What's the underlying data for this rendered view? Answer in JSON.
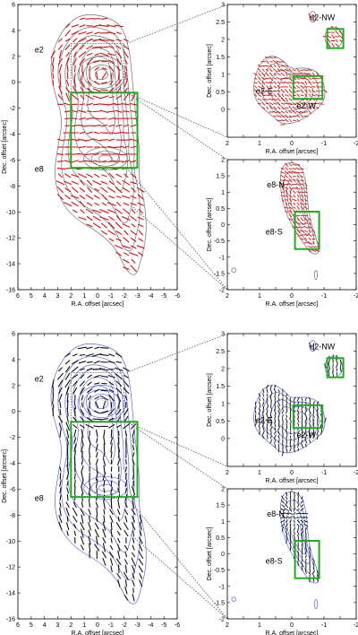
{
  "chart_data": [
    {
      "id": "p1",
      "type": "scatter",
      "subtype": "polarization-vector-map",
      "vector_color": "#d01010",
      "contour_color": "#6e6e6e",
      "xlabel": "R.A. offset [arcsec]",
      "ylabel": "Dec. offset [arcsec]",
      "xlim": [
        6,
        -6
      ],
      "ylim": [
        -16,
        6
      ],
      "xticks": [
        6,
        5,
        4,
        3,
        2,
        1,
        0,
        -1,
        -2,
        -3,
        -4,
        -5,
        -6
      ],
      "yticks": [
        6,
        4,
        2,
        0,
        -2,
        -4,
        -6,
        -8,
        -10,
        -12,
        -14,
        -16
      ],
      "labels": [
        {
          "text": "e2",
          "x": 4.4,
          "y": 2.3
        },
        {
          "text": "e8",
          "x": 4.4,
          "y": -6.9
        }
      ],
      "zoom_boxes": [
        {
          "x0": 2,
          "x1": -3,
          "y0": -0.8,
          "y1": -6.6
        }
      ]
    },
    {
      "id": "p2",
      "type": "scatter",
      "subtype": "polarization-vector-map",
      "vector_color": "#d01010",
      "contour_color": "#6e6e6e",
      "xlabel": "R.A. offset [arcsec]",
      "ylabel": "Dec. offset [arcsec]",
      "xlim": [
        2,
        -2
      ],
      "ylim": [
        -0.8,
        3
      ],
      "xticks": [
        2,
        1.5,
        1,
        0.5,
        0,
        -0.5,
        -1,
        -1.5,
        -2
      ],
      "xticklabels": [
        "2",
        "",
        "1",
        "",
        "0",
        "",
        "-1",
        "",
        "-2"
      ],
      "yticks": [
        0,
        0.5,
        1,
        1.5,
        2,
        2.5,
        3
      ],
      "yticklabels": [
        "0",
        "0.5",
        "1",
        "1.5",
        "2",
        "2.5",
        "3"
      ],
      "labels": [
        {
          "text": "e2-NW",
          "x": -0.95,
          "y": 2.55
        },
        {
          "text": "e2-E",
          "x": 0.85,
          "y": 0.45
        },
        {
          "text": "e2-W",
          "x": -0.45,
          "y": 0.02
        }
      ],
      "zoom_boxes": [
        {
          "x0": -1.1,
          "x1": -1.6,
          "y0": 1.75,
          "y1": 2.3
        },
        {
          "x0": -0.05,
          "x1": -0.95,
          "y0": 0.3,
          "y1": 0.95
        }
      ]
    },
    {
      "id": "p3",
      "type": "scatter",
      "subtype": "polarization-vector-map",
      "vector_color": "#d01010",
      "contour_color": "#6e6e6e",
      "xlabel": "R.A. offset [arcsec]",
      "ylabel": "Dec. offset [arcsec]",
      "xlim": [
        2,
        -2
      ],
      "ylim": [
        -2,
        2
      ],
      "xticks": [
        2,
        1.5,
        1,
        0.5,
        0,
        -0.5,
        -1,
        -1.5,
        -2
      ],
      "xticklabels": [
        "2",
        "",
        "1",
        "",
        "0",
        "",
        "-1",
        "",
        "-2"
      ],
      "yticks": [
        -2,
        -1.5,
        -1,
        -0.5,
        0,
        0.5,
        1,
        1.5,
        2
      ],
      "yticklabels": [
        "-2",
        "-1.5",
        "-1",
        "-0.5",
        "0",
        "0.5",
        "1",
        "1.5",
        "2"
      ],
      "labels": [
        {
          "text": "e8-N",
          "x": 0.5,
          "y": 1.15
        },
        {
          "text": "e8-S",
          "x": 0.55,
          "y": -0.3
        }
      ],
      "zoom_boxes": [
        {
          "x0": -0.1,
          "x1": -0.85,
          "y0": -0.75,
          "y1": 0.4
        }
      ]
    },
    {
      "id": "p4",
      "type": "scatter",
      "subtype": "polarization-vector-map",
      "vector_color": "#111111",
      "contour_color": "#5a6ad8",
      "xlabel": "R.A. offset [arcsec]",
      "ylabel": "Dec. offset [arcsec]",
      "xlim": [
        6,
        -6
      ],
      "ylim": [
        -16,
        6
      ],
      "xticks": [
        6,
        5,
        4,
        3,
        2,
        1,
        0,
        -1,
        -2,
        -3,
        -4,
        -5,
        -6
      ],
      "yticks": [
        6,
        4,
        2,
        0,
        -2,
        -4,
        -6,
        -8,
        -10,
        -12,
        -14,
        -16
      ],
      "labels": [
        {
          "text": "e2",
          "x": 4.4,
          "y": 2.3
        },
        {
          "text": "e8",
          "x": 4.4,
          "y": -6.9
        }
      ],
      "zoom_boxes": [
        {
          "x0": 2,
          "x1": -3,
          "y0": -0.8,
          "y1": -6.6
        }
      ]
    },
    {
      "id": "p5",
      "type": "scatter",
      "subtype": "polarization-vector-map",
      "vector_color": "#111111",
      "contour_color": "#5a6ad8",
      "xlabel": "R.A. offset [arcsec]",
      "ylabel": "Dec. offset [arcsec]",
      "xlim": [
        2,
        -2
      ],
      "ylim": [
        -0.8,
        3
      ],
      "xticks": [
        2,
        1.5,
        1,
        0.5,
        0,
        -0.5,
        -1,
        -1.5,
        -2
      ],
      "xticklabels": [
        "2",
        "",
        "1",
        "",
        "0",
        "",
        "-1",
        "",
        "-2"
      ],
      "yticks": [
        0,
        0.5,
        1,
        1.5,
        2,
        2.5,
        3
      ],
      "yticklabels": [
        "0",
        "0.5",
        "1",
        "1.5",
        "2",
        "2.5",
        "3"
      ],
      "labels": [
        {
          "text": "e2-NW",
          "x": -0.95,
          "y": 2.55
        },
        {
          "text": "e2-E",
          "x": 0.85,
          "y": 0.45
        },
        {
          "text": "e2-W",
          "x": -0.45,
          "y": 0.02
        }
      ],
      "zoom_boxes": [
        {
          "x0": -1.1,
          "x1": -1.6,
          "y0": 1.75,
          "y1": 2.3
        },
        {
          "x0": -0.05,
          "x1": -0.95,
          "y0": 0.3,
          "y1": 0.95
        }
      ]
    },
    {
      "id": "p6",
      "type": "scatter",
      "subtype": "polarization-vector-map",
      "vector_color": "#111111",
      "contour_color": "#5a6ad8",
      "xlabel": "R.A. offset [arcsec]",
      "ylabel": "Dec. offset [arcsec]",
      "xlim": [
        2,
        -2
      ],
      "ylim": [
        -2,
        2
      ],
      "xticks": [
        2,
        1.5,
        1,
        0.5,
        0,
        -0.5,
        -1,
        -1.5,
        -2
      ],
      "xticklabels": [
        "2",
        "",
        "1",
        "",
        "0",
        "",
        "-1",
        "",
        "-2"
      ],
      "yticks": [
        -2,
        -1.5,
        -1,
        -0.5,
        0,
        0.5,
        1,
        1.5,
        2
      ],
      "yticklabels": [
        "-2",
        "-1.5",
        "-1",
        "-0.5",
        "0",
        "0.5",
        "1",
        "1.5",
        "2"
      ],
      "labels": [
        {
          "text": "e8-N",
          "x": 0.5,
          "y": 1.15
        },
        {
          "text": "e8-S",
          "x": 0.55,
          "y": -0.3
        }
      ],
      "zoom_boxes": [
        {
          "x0": -0.1,
          "x1": -0.85,
          "y0": -0.75,
          "y1": 0.4
        }
      ]
    }
  ],
  "zoom_box_color": "#22aa22",
  "connector_color": "#555555"
}
